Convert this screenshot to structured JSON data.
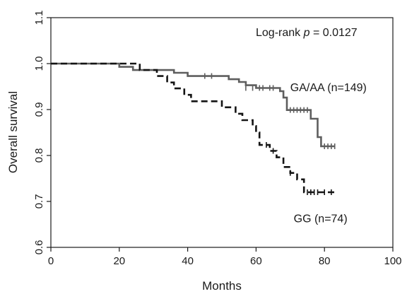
{
  "chart_data": {
    "type": "line",
    "subtype": "kaplan-meier",
    "xlabel": "Months",
    "ylabel": "Overall survival",
    "xlim": [
      0,
      100
    ],
    "ylim": [
      0.6,
      1.1
    ],
    "x_ticks": [
      "0",
      "20",
      "40",
      "60",
      "80",
      "100"
    ],
    "y_ticks": [
      "0.6",
      "0.7",
      "0.8",
      "0.9",
      "1.0",
      "1.1"
    ],
    "grid": false,
    "annotations": {
      "logrank_prefix": "Log-rank ",
      "logrank_p": "p",
      "logrank_value": " = 0.0127"
    },
    "series": [
      {
        "name": "GA/AA (n=149)",
        "color": "#5e5e5e",
        "style": "solid",
        "points": [
          [
            0,
            1.0
          ],
          [
            20,
            1.0
          ],
          [
            20,
            0.993
          ],
          [
            24,
            0.993
          ],
          [
            24,
            0.986
          ],
          [
            36,
            0.986
          ],
          [
            36,
            0.98
          ],
          [
            40,
            0.98
          ],
          [
            40,
            0.973
          ],
          [
            52,
            0.973
          ],
          [
            52,
            0.966
          ],
          [
            55,
            0.966
          ],
          [
            55,
            0.96
          ],
          [
            57,
            0.96
          ],
          [
            57,
            0.953
          ],
          [
            60,
            0.953
          ],
          [
            60,
            0.947
          ],
          [
            67,
            0.947
          ],
          [
            67,
            0.94
          ],
          [
            68,
            0.94
          ],
          [
            68,
            0.926
          ],
          [
            69,
            0.926
          ],
          [
            69,
            0.899
          ],
          [
            76,
            0.899
          ],
          [
            76,
            0.88
          ],
          [
            78,
            0.88
          ],
          [
            78,
            0.84
          ],
          [
            79,
            0.84
          ],
          [
            79,
            0.82
          ],
          [
            83,
            0.82
          ]
        ],
        "censored": [
          [
            45,
            0.973
          ],
          [
            47,
            0.973
          ],
          [
            57,
            0.947
          ],
          [
            59,
            0.947
          ],
          [
            61,
            0.947
          ],
          [
            62,
            0.947
          ],
          [
            64,
            0.947
          ],
          [
            65,
            0.947
          ],
          [
            70,
            0.899
          ],
          [
            71,
            0.899
          ],
          [
            72,
            0.899
          ],
          [
            73,
            0.899
          ],
          [
            74,
            0.899
          ],
          [
            75,
            0.899
          ],
          [
            80,
            0.82
          ],
          [
            81,
            0.82
          ],
          [
            82,
            0.82
          ],
          [
            83,
            0.82
          ]
        ]
      },
      {
        "name": "GG (n=74)",
        "color": "#141414",
        "style": "dashed",
        "points": [
          [
            0,
            1.0
          ],
          [
            26,
            1.0
          ],
          [
            26,
            0.986
          ],
          [
            31,
            0.986
          ],
          [
            31,
            0.973
          ],
          [
            34,
            0.973
          ],
          [
            34,
            0.959
          ],
          [
            36,
            0.959
          ],
          [
            36,
            0.946
          ],
          [
            39,
            0.946
          ],
          [
            39,
            0.932
          ],
          [
            41,
            0.932
          ],
          [
            41,
            0.918
          ],
          [
            50,
            0.918
          ],
          [
            50,
            0.905
          ],
          [
            54,
            0.905
          ],
          [
            54,
            0.891
          ],
          [
            56,
            0.891
          ],
          [
            56,
            0.877
          ],
          [
            59,
            0.877
          ],
          [
            59,
            0.864
          ],
          [
            60,
            0.864
          ],
          [
            60,
            0.85
          ],
          [
            61,
            0.85
          ],
          [
            61,
            0.823
          ],
          [
            64,
            0.823
          ],
          [
            64,
            0.81
          ],
          [
            66,
            0.81
          ],
          [
            66,
            0.796
          ],
          [
            68,
            0.796
          ],
          [
            68,
            0.775
          ],
          [
            70,
            0.775
          ],
          [
            70,
            0.762
          ],
          [
            72,
            0.762
          ],
          [
            72,
            0.748
          ],
          [
            74,
            0.748
          ],
          [
            74,
            0.72
          ],
          [
            83,
            0.72
          ]
        ],
        "censored": [
          [
            63,
            0.823
          ],
          [
            65,
            0.81
          ],
          [
            70,
            0.762
          ],
          [
            75,
            0.72
          ],
          [
            76,
            0.72
          ],
          [
            77,
            0.72
          ],
          [
            78,
            0.72
          ],
          [
            80,
            0.72
          ],
          [
            82,
            0.72
          ]
        ]
      }
    ],
    "series_labels": [
      {
        "text": "GA/AA (n=149)",
        "x": 70,
        "y": 0.94
      },
      {
        "text": "GG (n=74)",
        "x": 71,
        "y": 0.655
      }
    ]
  }
}
